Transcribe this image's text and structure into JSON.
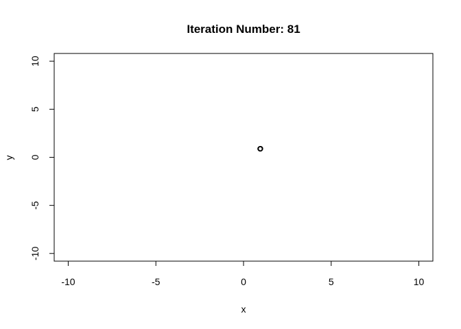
{
  "chart_data": {
    "type": "scatter",
    "title": "Iteration Number:  81",
    "xlabel": "x",
    "ylabel": "y",
    "xlim": [
      -10.8,
      10.8
    ],
    "ylim": [
      -10.8,
      10.8
    ],
    "x_ticks": [
      -10,
      -5,
      0,
      5,
      10
    ],
    "y_ticks": [
      -10,
      -5,
      0,
      5,
      10
    ],
    "x_tick_labels": [
      "-10",
      "-5",
      "0",
      "5",
      "10"
    ],
    "y_tick_labels": [
      "-10",
      "-5",
      "0",
      "5",
      "10"
    ],
    "grid": false,
    "series": [
      {
        "name": "points",
        "marker": "open-circle",
        "color": "#000000",
        "x": [
          0.95,
          0.97,
          0.96,
          0.94
        ],
        "y": [
          0.88,
          0.9,
          0.87,
          0.89
        ]
      }
    ]
  }
}
